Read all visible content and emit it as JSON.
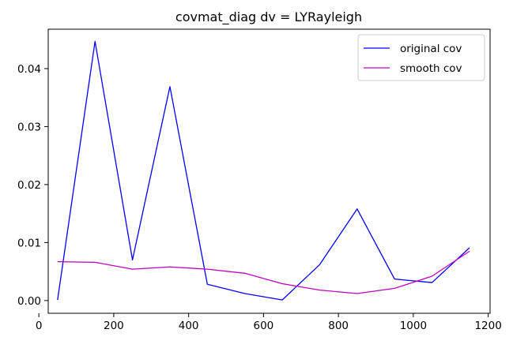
{
  "chart_data": {
    "type": "line",
    "title": "covmat_diag dv = LYRayleigh",
    "xlabel": "",
    "ylabel": "",
    "xlim": [
      25,
      1205
    ],
    "ylim": [
      -0.0022,
      0.0468
    ],
    "xticks": [
      0,
      200,
      400,
      600,
      800,
      1000,
      1200
    ],
    "xtick_labels": [
      "0",
      "200",
      "400",
      "600",
      "800",
      "1000",
      "1200"
    ],
    "yticks": [
      0.0,
      0.01,
      0.02,
      0.03,
      0.04
    ],
    "ytick_labels": [
      "0.00",
      "0.01",
      "0.02",
      "0.03",
      "0.04"
    ],
    "grid": false,
    "legend_position": "top-right",
    "x": [
      50,
      150,
      250,
      350,
      450,
      550,
      650,
      750,
      850,
      950,
      1050,
      1150
    ],
    "series": [
      {
        "name": "original cov",
        "color": "#0000ff",
        "values": [
          0.0001,
          0.0447,
          0.007,
          0.0369,
          0.0028,
          0.0012,
          0.0001,
          0.0062,
          0.0158,
          0.0037,
          0.0031,
          0.0091
        ]
      },
      {
        "name": "smooth cov",
        "color": "#bf00bf",
        "values": [
          0.0067,
          0.0066,
          0.0054,
          0.0058,
          0.0054,
          0.0047,
          0.0029,
          0.0018,
          0.0012,
          0.0021,
          0.0042,
          0.0085
        ]
      }
    ]
  }
}
